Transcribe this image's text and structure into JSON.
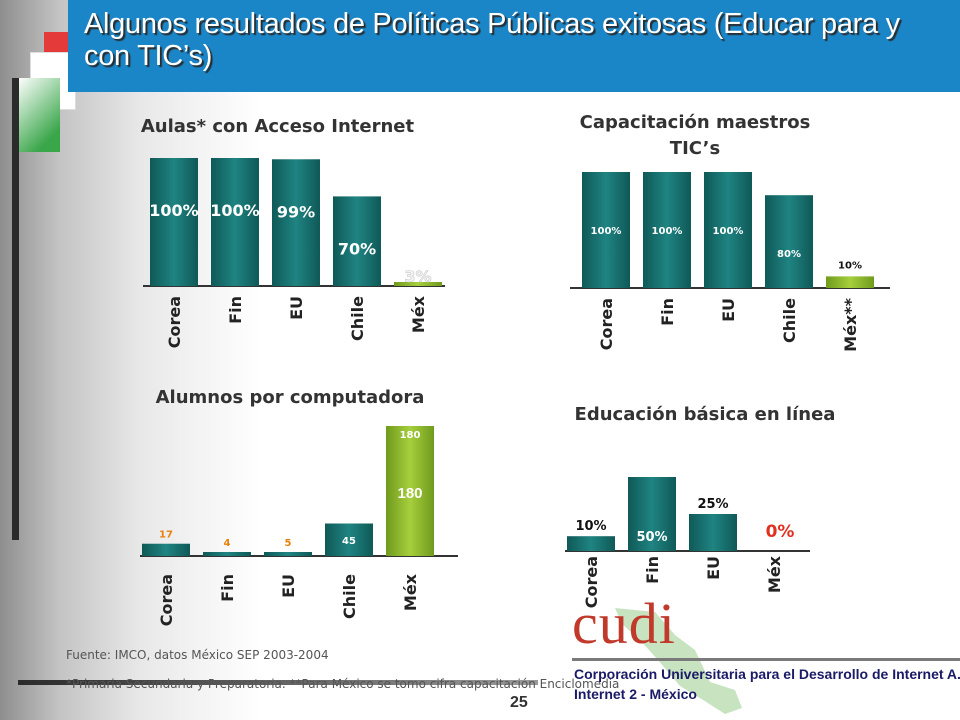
{
  "header": {
    "title": "Algunos resultados de Políticas Públicas exitosas (Educar para y con TIC’s)"
  },
  "colors": {
    "title_bar": "#1a86c8",
    "bar_teal": "#16706e",
    "bar_mexico": "#8db82b",
    "value_orange": "#e8820c",
    "value_red": "#e03020"
  },
  "chart_data": [
    {
      "type": "bar",
      "title": "Aulas* con Acceso Internet",
      "categories": [
        "Corea",
        "Fin",
        "EU",
        "Chile",
        "Méx"
      ],
      "values": [
        100,
        100,
        99,
        70,
        3
      ],
      "value_labels": [
        "100%",
        "100%",
        "99%",
        "70%",
        "3%"
      ],
      "ylim": [
        0,
        100
      ]
    },
    {
      "type": "bar",
      "title": "Capacitación maestros TIC’s",
      "categories": [
        "Corea",
        "Fin",
        "EU",
        "Chile",
        "Méx**"
      ],
      "values": [
        100,
        100,
        100,
        80,
        10
      ],
      "value_labels": [
        "100%",
        "100%",
        "100%",
        "80%",
        "10%"
      ],
      "ylim": [
        0,
        100
      ]
    },
    {
      "type": "bar",
      "title": "Alumnos por computadora",
      "categories": [
        "Corea",
        "Fin",
        "EU",
        "Chile",
        "Méx"
      ],
      "values": [
        17,
        4,
        5,
        45,
        180
      ],
      "value_labels": [
        "17",
        "4",
        "5",
        "45",
        "180"
      ],
      "extra_label": "180",
      "ylim": [
        0,
        180
      ]
    },
    {
      "type": "bar",
      "title": "Educación básica en línea",
      "categories": [
        "Corea",
        "Fin",
        "EU",
        "Méx"
      ],
      "values": [
        10,
        50,
        25,
        0
      ],
      "value_labels": [
        "10%",
        "50%",
        "25%",
        "0%"
      ],
      "ylim": [
        0,
        50
      ]
    }
  ],
  "footer": {
    "source": "Fuente: IMCO, datos México SEP 2003-2004",
    "footnote": "*Primaria Secundaria y Preparatoria. **Para México se tomo cifra capacitación Enciclomedia",
    "page_number": "25"
  },
  "logo": {
    "name": "cudi",
    "line1": "Corporación Universitaria para el Desarrollo de Internet A.C.",
    "line2": "Internet 2 - México"
  }
}
